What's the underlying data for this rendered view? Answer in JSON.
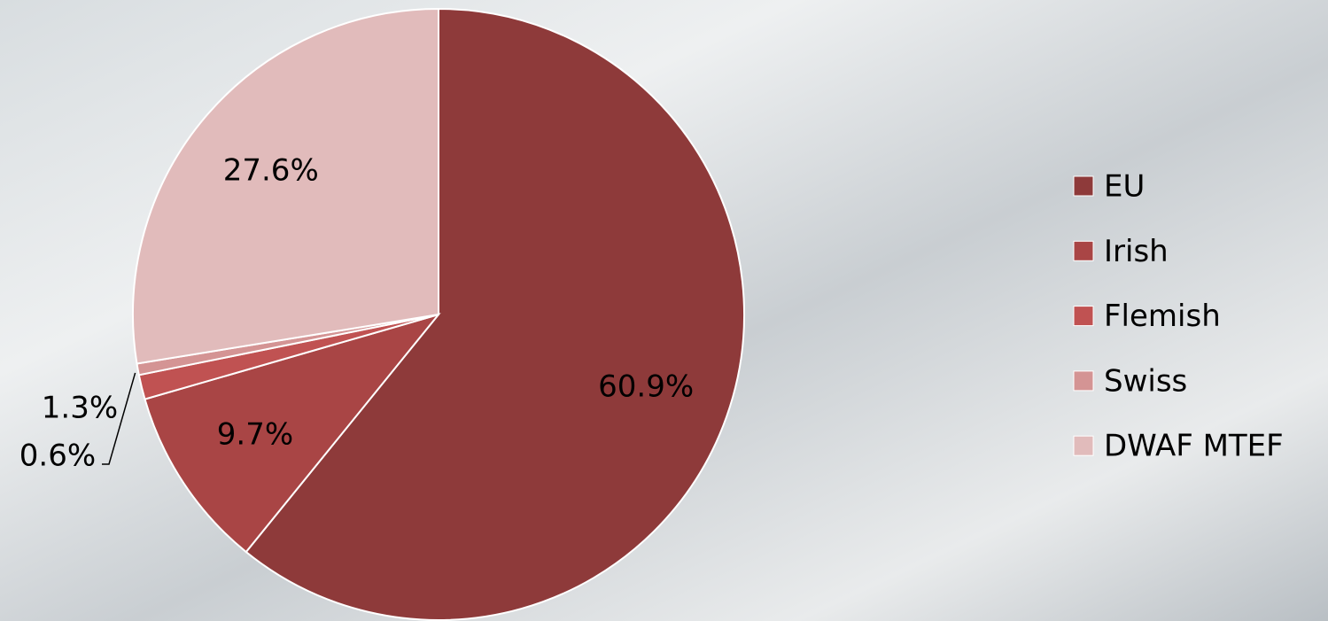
{
  "chart_data": {
    "type": "pie",
    "categories": [
      "EU",
      "Irish",
      "Flemish",
      "Swiss",
      "DWAF MTEF"
    ],
    "values": [
      60.9,
      9.7,
      1.3,
      0.6,
      27.6
    ],
    "value_labels": [
      "60.9%",
      "9.7%",
      "1.3%",
      "0.6%",
      "27.6%"
    ],
    "colors": [
      "#8e3a3a",
      "#a94545",
      "#c05252",
      "#d49494",
      "#e1bbbb"
    ]
  }
}
